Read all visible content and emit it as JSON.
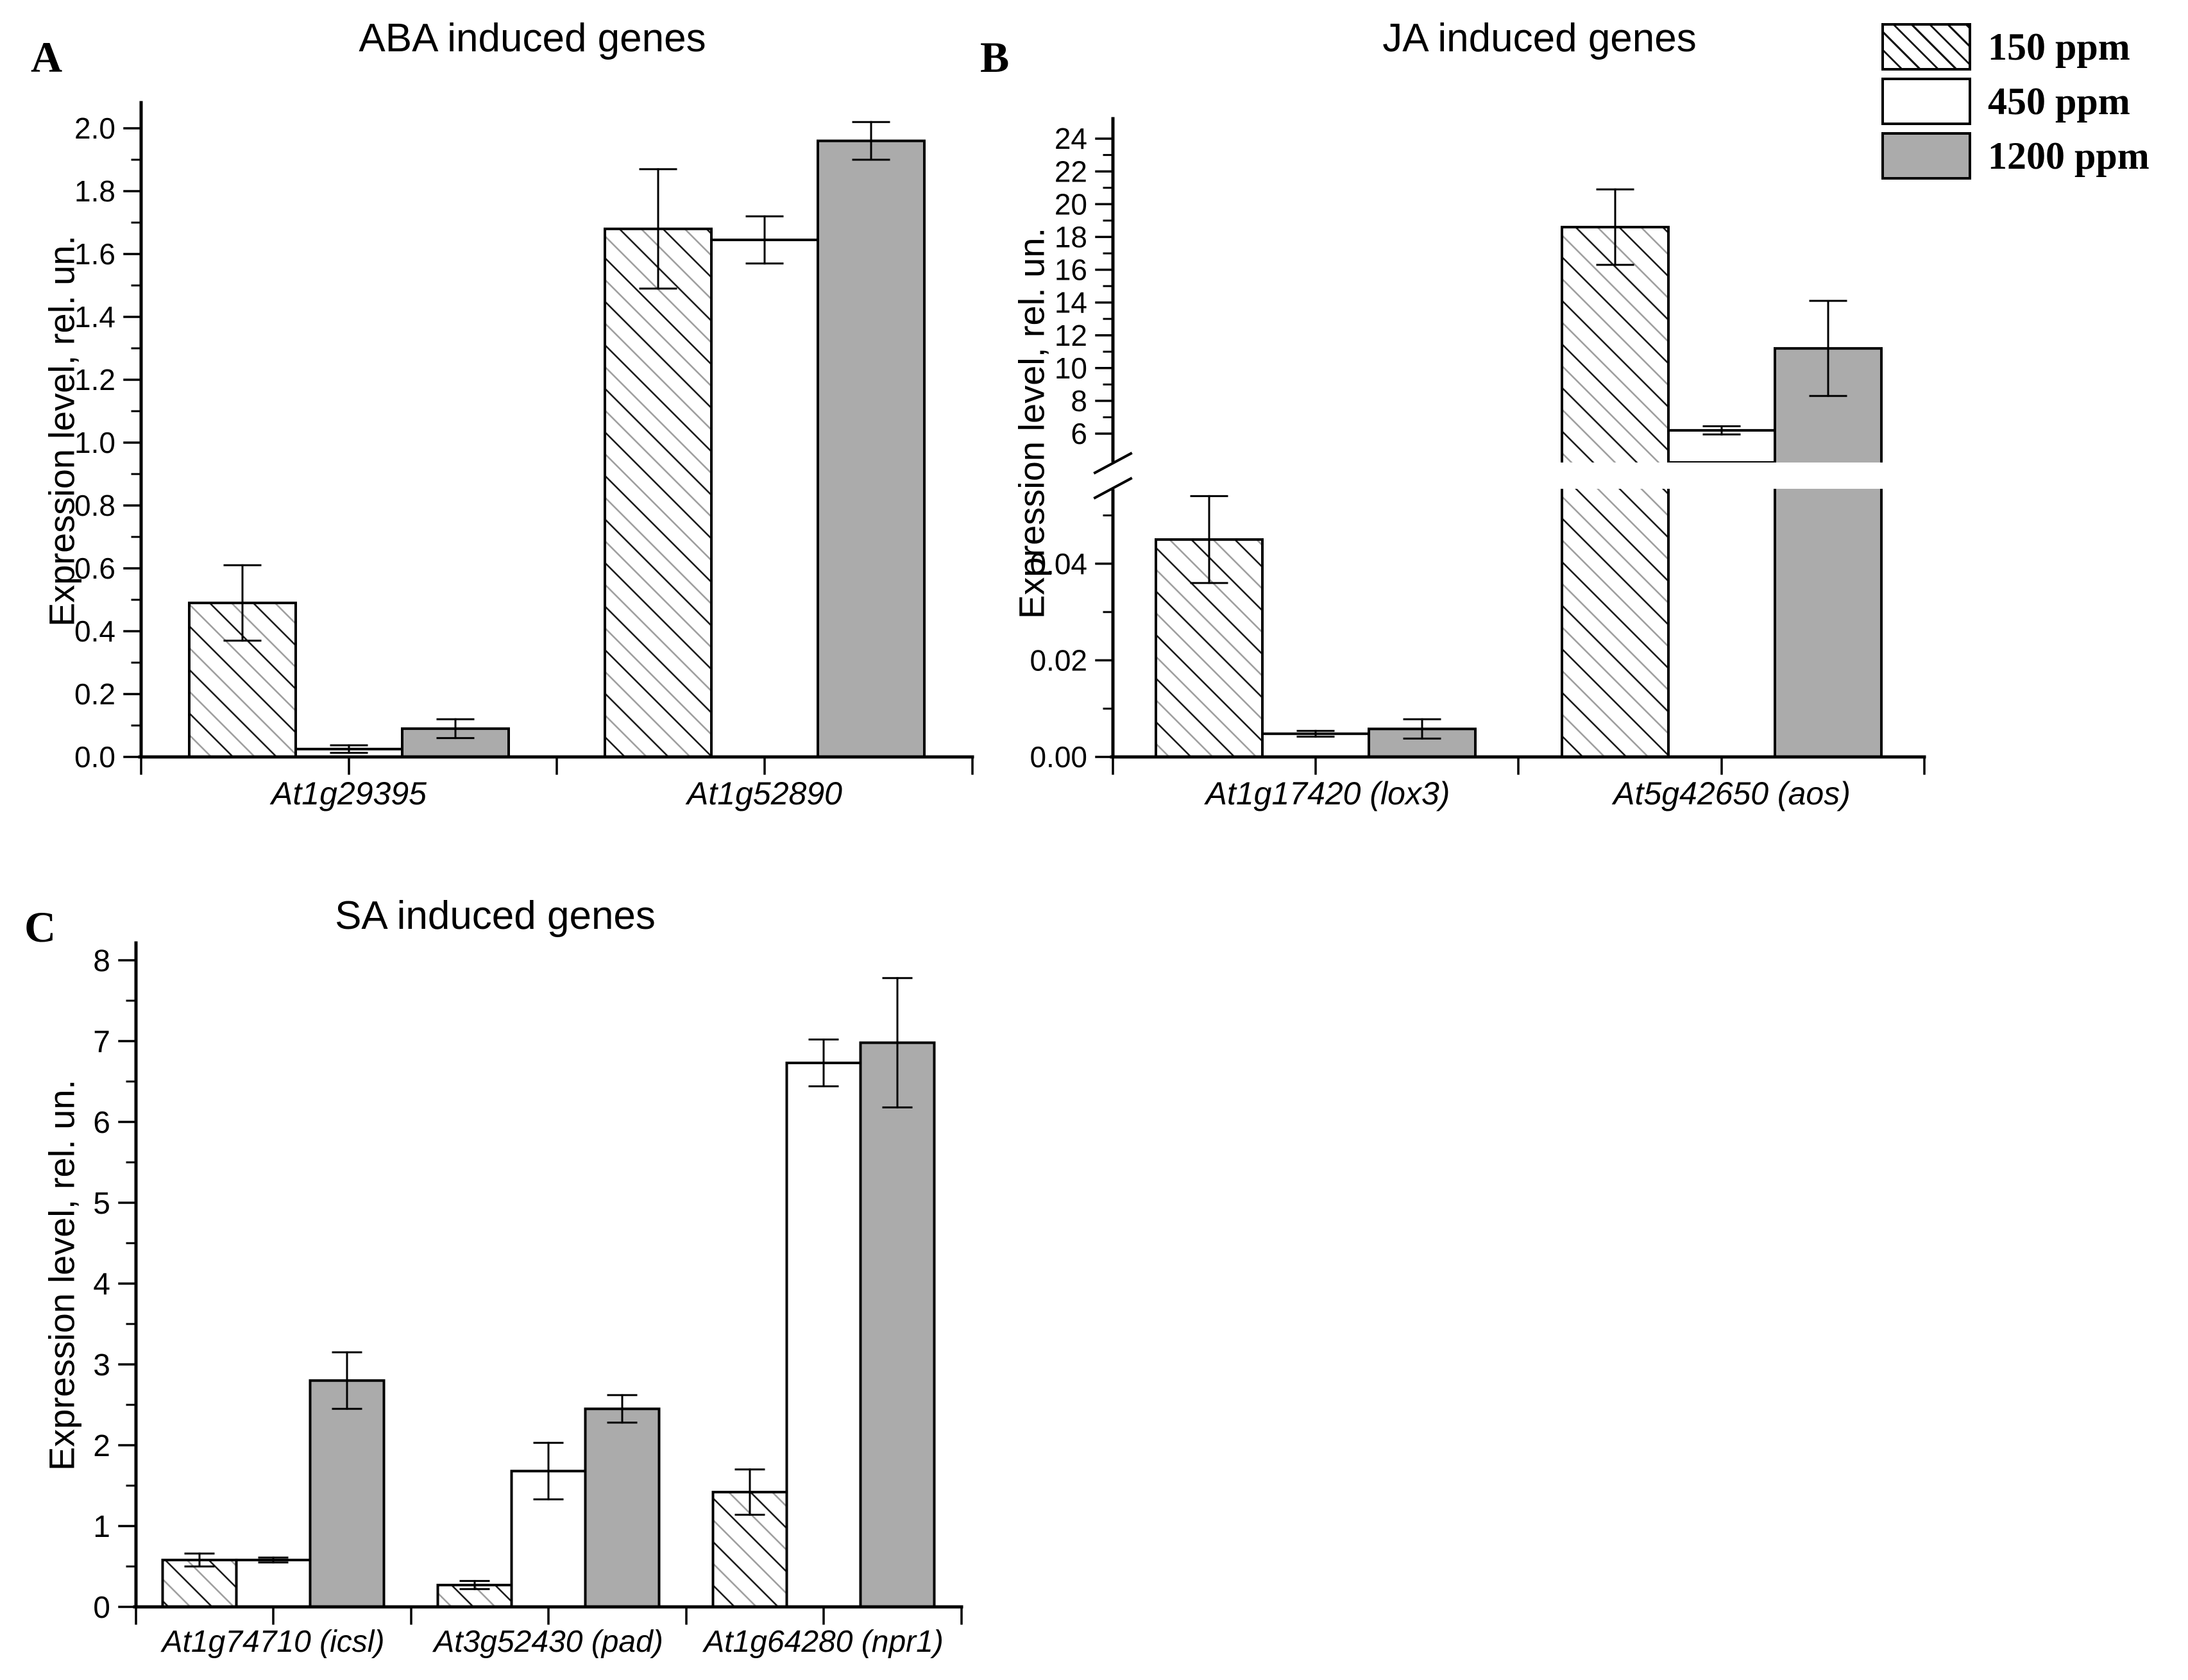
{
  "figure": {
    "background": "#ffffff",
    "ink": "#000000",
    "bar_gray": "#ababab",
    "hatch_dark": "#141414",
    "hatch_light": "#9b9b9b"
  },
  "legend": {
    "position": "top-right",
    "items": [
      {
        "label": "150 ppm",
        "swatch": "hatch"
      },
      {
        "label": "450 ppm",
        "swatch": "white"
      },
      {
        "label": "1200 ppm",
        "swatch": "gray"
      }
    ]
  },
  "chart_data": [
    {
      "panel_letter": "A",
      "type": "bar",
      "title": "ABA induced genes",
      "ylabel": "Expression level, rel. un.",
      "categories": [
        "At1g29395",
        "At1g52890"
      ],
      "series": [
        {
          "name": "150 ppm",
          "style": "hatch",
          "values": [
            0.49,
            1.68
          ],
          "errors": [
            0.12,
            0.19
          ]
        },
        {
          "name": "450 ppm",
          "style": "white",
          "values": [
            0.025,
            1.645
          ],
          "errors": [
            0.012,
            0.075
          ]
        },
        {
          "name": "1200 ppm",
          "style": "gray",
          "values": [
            0.09,
            1.96
          ],
          "errors": [
            0.03,
            0.06
          ]
        }
      ],
      "ylim": [
        0,
        2.08
      ],
      "ytick_major": 0.2,
      "ytick_minor": 0.1,
      "ytick_decimals": 1,
      "grid": false,
      "legend_position": "figure-top-right"
    },
    {
      "panel_letter": "B",
      "type": "bar",
      "axis_break": true,
      "title": "JA induced genes",
      "ylabel": "Expression level, rel. un.",
      "categories": [
        "At1g17420 (lox3)",
        "At5g42650 (aos)"
      ],
      "series": [
        {
          "name": "150 ppm",
          "style": "hatch",
          "values": [
            0.045,
            18.6
          ],
          "errors": [
            0.009,
            2.3
          ]
        },
        {
          "name": "450 ppm",
          "style": "white",
          "values": [
            0.0048,
            6.2
          ],
          "errors": [
            0.0006,
            0.25
          ],
          "show_below_break": [
            true,
            false
          ]
        },
        {
          "name": "1200 ppm",
          "style": "gray",
          "values": [
            0.0058,
            11.2
          ],
          "errors": [
            0.002,
            2.9
          ]
        }
      ],
      "lower_axis": {
        "lim": [
          0,
          0.0555
        ],
        "tick_major": 0.02,
        "tick_minor": 0.01,
        "decimals": 2
      },
      "upper_axis": {
        "lim": [
          6,
          24
        ],
        "tick_major": 2,
        "tick_minor": 1,
        "decimals": 0
      },
      "grid": false
    },
    {
      "panel_letter": "C",
      "type": "bar",
      "title": "SA induced genes",
      "ylabel": "Expression level, rel. un.",
      "categories": [
        "At1g74710 (icsl)",
        "At3g52430 (pad)",
        "At1g64280 (npr1)"
      ],
      "series": [
        {
          "name": "150 ppm",
          "style": "hatch",
          "values": [
            0.58,
            0.27,
            1.42
          ],
          "errors": [
            0.08,
            0.05,
            0.28
          ]
        },
        {
          "name": "450 ppm",
          "style": "white",
          "values": [
            0.58,
            1.68,
            6.73
          ],
          "errors": [
            0.03,
            0.35,
            0.29
          ]
        },
        {
          "name": "1200 ppm",
          "style": "gray",
          "values": [
            2.8,
            2.45,
            6.98
          ],
          "errors": [
            0.35,
            0.17,
            0.8
          ]
        }
      ],
      "ylim": [
        0,
        8.2
      ],
      "ytick_major": 1,
      "ytick_minor": 0.5,
      "ytick_decimals": 0,
      "grid": false
    }
  ]
}
